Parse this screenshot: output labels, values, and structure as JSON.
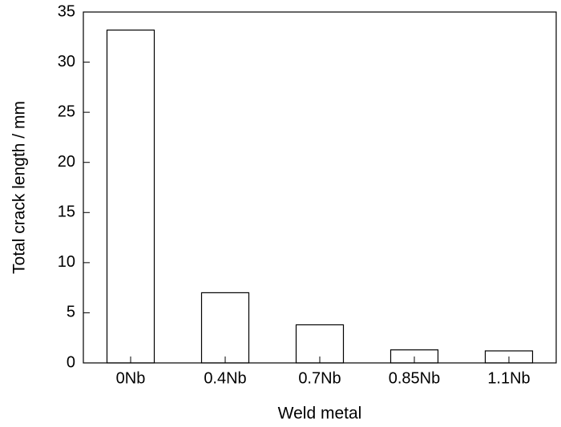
{
  "chart_data": {
    "type": "bar",
    "x_label": "Weld metal",
    "y_label": "Total crack length / mm",
    "categories": [
      "0Nb",
      "0.4Nb",
      "0.7Nb",
      "0.85Nb",
      "1.1Nb"
    ],
    "values": [
      33.2,
      7.0,
      3.8,
      1.3,
      1.2
    ],
    "color": "#ffffff",
    "ylim": [
      0,
      35
    ],
    "yticks": [
      0,
      5,
      10,
      15,
      20,
      25,
      30,
      35
    ],
    "grid": false
  }
}
